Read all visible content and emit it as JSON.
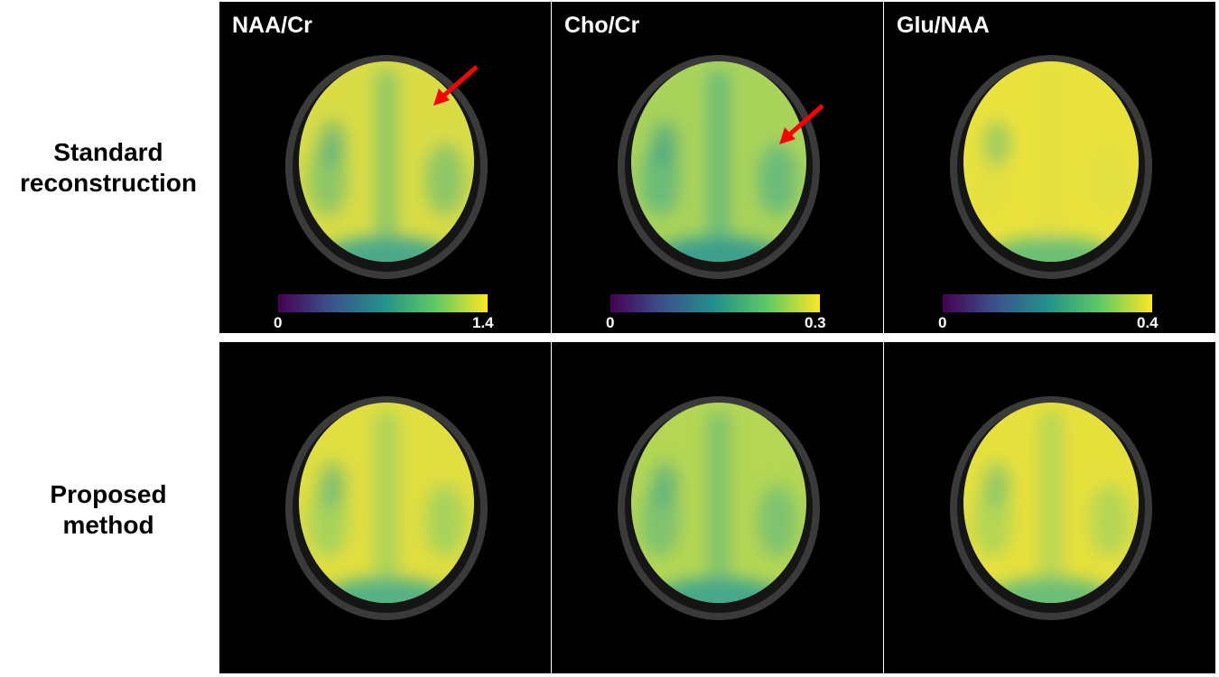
{
  "row_labels": [
    "Standard\nreconstruction",
    "Proposed\nmethod"
  ],
  "columns": [
    {
      "metric": "NAA/Cr",
      "colorbar": {
        "min": "0",
        "max": "1.4",
        "colormap": "viridis"
      }
    },
    {
      "metric": "Cho/Cr",
      "colorbar": {
        "min": "0",
        "max": "0.3",
        "colormap": "viridis"
      }
    },
    {
      "metric": "Glu/NAA",
      "colorbar": {
        "min": "0",
        "max": "0.4",
        "colormap": "viridis"
      }
    }
  ],
  "panels": [
    {
      "row": 0,
      "col": 0,
      "base": "#d9dc45",
      "mid": "#8fc766",
      "low": "#49a98a",
      "arrow": true
    },
    {
      "row": 0,
      "col": 1,
      "base": "#a9d35a",
      "mid": "#6cbc78",
      "low": "#3a9f8c",
      "arrow": true
    },
    {
      "row": 0,
      "col": 2,
      "base": "#eae23c",
      "mid": "#e2df40",
      "low": "#6cbf74",
      "arrow": false
    },
    {
      "row": 1,
      "col": 0,
      "base": "#e1de40",
      "mid": "#a8d35a",
      "low": "#54b183",
      "arrow": false
    },
    {
      "row": 1,
      "col": 1,
      "base": "#b4d654",
      "mid": "#7fc36e",
      "low": "#45a78a",
      "arrow": false
    },
    {
      "row": 1,
      "col": 2,
      "base": "#e6e03d",
      "mid": "#b5d655",
      "low": "#6abd78",
      "arrow": false
    }
  ],
  "arrow_color": "#ff0000"
}
